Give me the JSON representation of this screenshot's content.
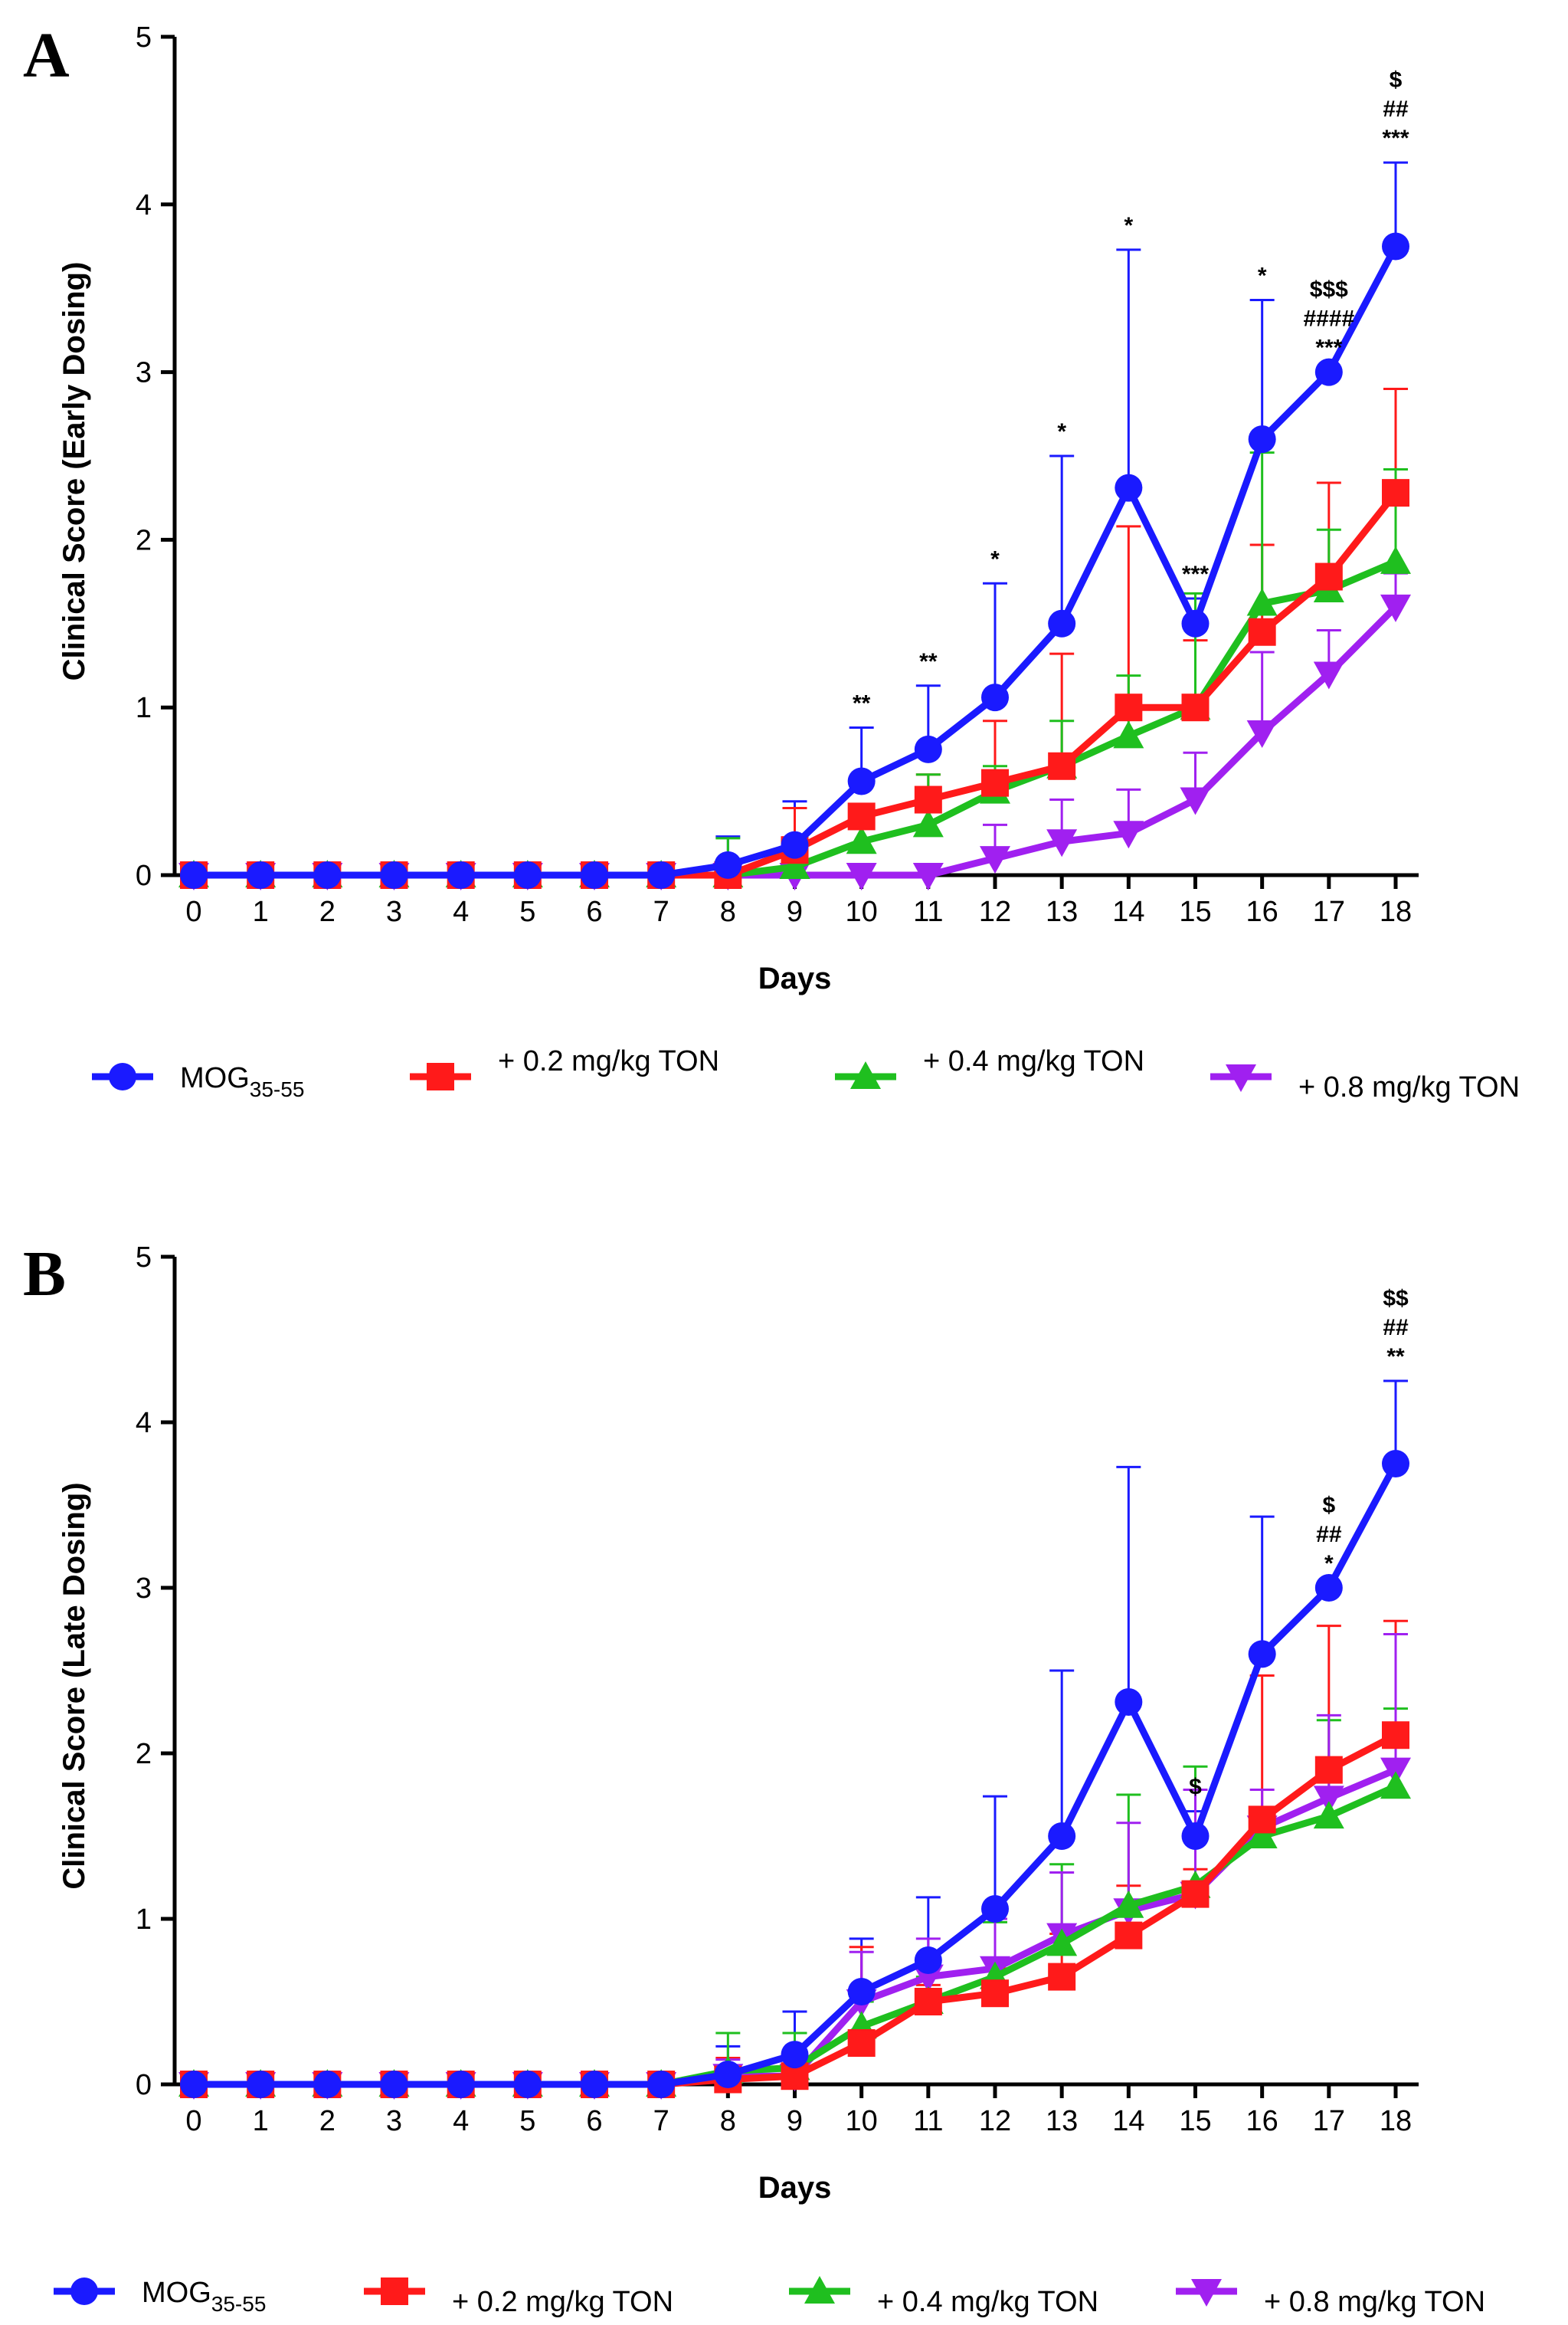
{
  "colors": {
    "blue": "#1a1aff",
    "red": "#ff1a1a",
    "green": "#1fbf1f",
    "purple": "#a020f0"
  },
  "chart_data": [
    {
      "panel_label": "A",
      "type": "line",
      "xlabel": "Days",
      "ylabel": "Clinical Score (Early Dosing)",
      "xlim": [
        0,
        18
      ],
      "ylim": [
        0,
        5
      ],
      "xticks": [
        "0",
        "1",
        "2",
        "3",
        "4",
        "5",
        "6",
        "7",
        "8",
        "9",
        "10",
        "11",
        "12",
        "13",
        "14",
        "15",
        "16",
        "17",
        "18"
      ],
      "yticks": [
        "0",
        "1",
        "2",
        "3",
        "4",
        "5"
      ],
      "x": [
        0,
        1,
        2,
        3,
        4,
        5,
        6,
        7,
        8,
        9,
        10,
        11,
        12,
        13,
        14,
        15,
        16,
        17,
        18
      ],
      "series": [
        {
          "name": "MOG",
          "sub": "35-55",
          "color": "#1a1aff",
          "marker": "circle",
          "values": [
            0,
            0,
            0,
            0,
            0,
            0,
            0,
            0,
            0.06,
            0.18,
            0.56,
            0.75,
            1.06,
            1.5,
            2.31,
            1.5,
            2.6,
            3.0,
            3.75
          ],
          "err": [
            0,
            0,
            0,
            0,
            0,
            0,
            0,
            0,
            0.17,
            0.26,
            0.32,
            0.38,
            0.68,
            1.0,
            1.42,
            0.15,
            0.83,
            0,
            0.5
          ]
        },
        {
          "name": "+ 0.2 mg/kg TON",
          "color": "#ff1a1a",
          "marker": "square",
          "values": [
            0,
            0,
            0,
            0,
            0,
            0,
            0,
            0,
            0,
            0.15,
            0.35,
            0.45,
            0.55,
            0.65,
            1.0,
            1.0,
            1.45,
            1.78,
            2.28
          ],
          "err": [
            0,
            0,
            0,
            0,
            0,
            0,
            0,
            0,
            0,
            0.25,
            0.07,
            0.15,
            0.37,
            0.67,
            1.08,
            0.4,
            0.52,
            0.56,
            0.62
          ]
        },
        {
          "name": "+ 0.4 mg/kg TON",
          "color": "#1fbf1f",
          "marker": "triangle-up",
          "values": [
            0,
            0,
            0,
            0,
            0,
            0,
            0,
            0,
            0,
            0.05,
            0.2,
            0.3,
            0.5,
            0.65,
            0.83,
            1.0,
            1.62,
            1.7,
            1.87
          ],
          "err": [
            0,
            0,
            0,
            0,
            0,
            0,
            0,
            0,
            0.22,
            0.12,
            0.22,
            0.3,
            0.15,
            0.27,
            0.36,
            0.68,
            0.9,
            0.36,
            0.55
          ]
        },
        {
          "name": "+ 0.8 mg/kg TON",
          "color": "#a020f0",
          "marker": "triangle-down",
          "values": [
            0,
            0,
            0,
            0,
            0,
            0,
            0,
            0,
            0,
            0,
            0,
            0,
            0.1,
            0.2,
            0.25,
            0.45,
            0.85,
            1.2,
            1.6
          ],
          "err": [
            0,
            0,
            0,
            0,
            0,
            0,
            0,
            0,
            0,
            0,
            0,
            0,
            0.2,
            0.25,
            0.26,
            0.28,
            0.48,
            0.26,
            0.2
          ]
        }
      ],
      "annotations": [
        {
          "x": 10,
          "lines": [
            "**"
          ]
        },
        {
          "x": 11,
          "lines": [
            "**"
          ]
        },
        {
          "x": 12,
          "lines": [
            "*"
          ]
        },
        {
          "x": 13,
          "lines": [
            "*"
          ]
        },
        {
          "x": 14,
          "lines": [
            "*"
          ]
        },
        {
          "x": 15,
          "lines": [
            "***"
          ]
        },
        {
          "x": 16,
          "lines": [
            "*"
          ]
        },
        {
          "x": 17,
          "lines": [
            "$$$",
            "####",
            "***"
          ]
        },
        {
          "x": 18,
          "lines": [
            "$",
            "##",
            "***"
          ]
        }
      ]
    },
    {
      "panel_label": "B",
      "type": "line",
      "xlabel": "Days",
      "ylabel": "Clinical Score (Late Dosing)",
      "xlim": [
        0,
        18
      ],
      "ylim": [
        0,
        5
      ],
      "xticks": [
        "0",
        "1",
        "2",
        "3",
        "4",
        "5",
        "6",
        "7",
        "8",
        "9",
        "10",
        "11",
        "12",
        "13",
        "14",
        "15",
        "16",
        "17",
        "18"
      ],
      "yticks": [
        "0",
        "1",
        "2",
        "3",
        "4",
        "5"
      ],
      "x": [
        0,
        1,
        2,
        3,
        4,
        5,
        6,
        7,
        8,
        9,
        10,
        11,
        12,
        13,
        14,
        15,
        16,
        17,
        18
      ],
      "series": [
        {
          "name": "MOG",
          "sub": "35-55",
          "color": "#1a1aff",
          "marker": "circle",
          "values": [
            0,
            0,
            0,
            0,
            0,
            0,
            0,
            0,
            0.06,
            0.18,
            0.56,
            0.75,
            1.06,
            1.5,
            2.31,
            1.5,
            2.6,
            3.0,
            3.75
          ],
          "err": [
            0,
            0,
            0,
            0,
            0,
            0,
            0,
            0,
            0.17,
            0.26,
            0.32,
            0.38,
            0.68,
            1.0,
            1.42,
            0.15,
            0.83,
            0,
            0.5
          ]
        },
        {
          "name": "+ 0.2 mg/kg TON",
          "color": "#ff1a1a",
          "marker": "square",
          "values": [
            0,
            0,
            0,
            0,
            0,
            0,
            0,
            0,
            0.03,
            0.05,
            0.25,
            0.5,
            0.55,
            0.65,
            0.9,
            1.15,
            1.6,
            1.9,
            2.11
          ],
          "err": [
            0,
            0,
            0,
            0,
            0,
            0,
            0,
            0,
            0.13,
            0.12,
            0.58,
            0.1,
            0.15,
            0.26,
            0.3,
            0.15,
            0.87,
            0.87,
            0.69
          ]
        },
        {
          "name": "+ 0.4 mg/kg TON",
          "color": "#1fbf1f",
          "marker": "triangle-up",
          "values": [
            0,
            0,
            0,
            0,
            0,
            0,
            0,
            0,
            0.08,
            0.1,
            0.35,
            0.5,
            0.65,
            0.85,
            1.08,
            1.2,
            1.5,
            1.62,
            1.8
          ],
          "err": [
            0,
            0,
            0,
            0,
            0,
            0,
            0,
            0,
            0.23,
            0.21,
            0.15,
            0.15,
            0.33,
            0.48,
            0.67,
            0.72,
            0.15,
            0.58,
            0.47
          ]
        },
        {
          "name": "+ 0.8 mg/kg TON",
          "color": "#a020f0",
          "marker": "triangle-down",
          "values": [
            0,
            0,
            0,
            0,
            0,
            0,
            0,
            0,
            0.05,
            0.05,
            0.5,
            0.65,
            0.7,
            0.9,
            1.05,
            1.15,
            1.55,
            1.73,
            1.9
          ],
          "err": [
            0,
            0,
            0,
            0,
            0,
            0,
            0,
            0,
            0.1,
            0.1,
            0.3,
            0.23,
            0.3,
            0.38,
            0.53,
            0.63,
            0.23,
            0.5,
            0.82
          ]
        }
      ],
      "annotations": [
        {
          "x": 15,
          "lines": [
            "$"
          ]
        },
        {
          "x": 17,
          "lines": [
            "$",
            "##",
            "*"
          ]
        },
        {
          "x": 18,
          "lines": [
            "$$",
            "##",
            "**"
          ]
        }
      ]
    }
  ]
}
